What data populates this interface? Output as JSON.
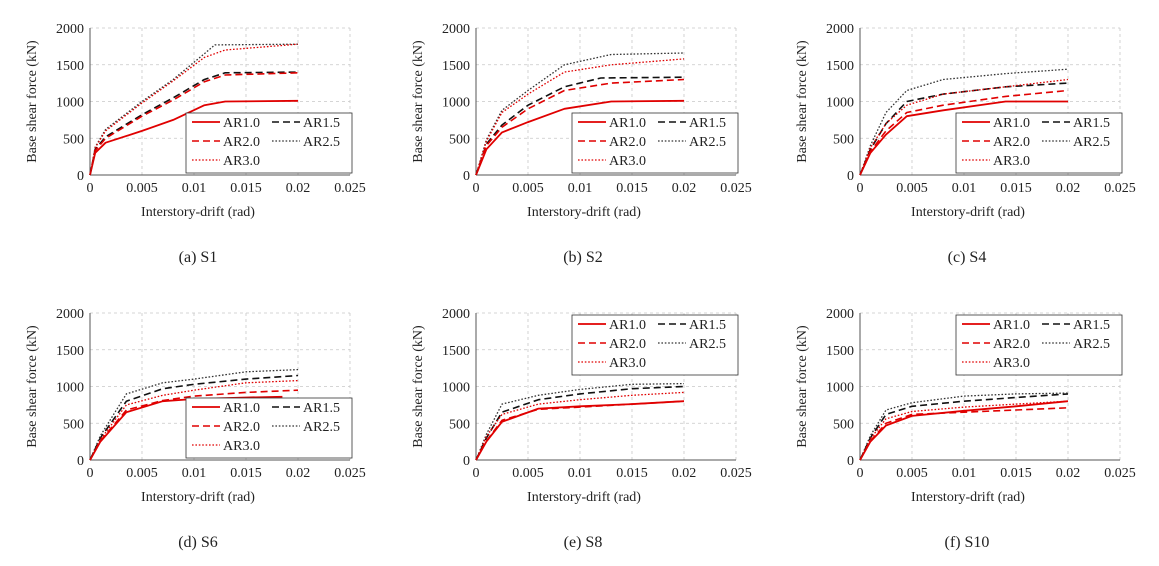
{
  "figure": {
    "colors": {
      "ar10": "#e00000",
      "ar15": "#111111",
      "ar20": "#e00000",
      "ar25": "#333333",
      "ar30": "#e00000"
    }
  },
  "chart_data": [
    {
      "type": "line",
      "caption": "(a) S1",
      "xlabel": "Interstory-drift  (rad)",
      "ylabel": "Base shear force (kN)",
      "xlim": [
        0,
        0.025
      ],
      "ylim": [
        0,
        2000
      ],
      "xticks": [
        "0",
        "0.005",
        "0.01",
        "0.015",
        "0.02",
        "0.025"
      ],
      "yticks": [
        "0",
        "500",
        "1000",
        "1500",
        "2000"
      ],
      "legend_position": "bottom-right",
      "series": [
        {
          "name": "AR1.0",
          "style": "solid",
          "color": "#e00000",
          "x": [
            0,
            0.0005,
            0.0015,
            0.005,
            0.008,
            0.011,
            0.013,
            0.02
          ],
          "y": [
            0,
            300,
            440,
            600,
            750,
            950,
            1000,
            1010
          ]
        },
        {
          "name": "AR1.5",
          "style": "dash",
          "color": "#111111",
          "x": [
            0,
            0.0005,
            0.0015,
            0.005,
            0.008,
            0.011,
            0.013,
            0.02
          ],
          "y": [
            0,
            350,
            520,
            820,
            1050,
            1300,
            1390,
            1400
          ]
        },
        {
          "name": "AR2.0",
          "style": "dash",
          "color": "#e00000",
          "x": [
            0,
            0.0005,
            0.0015,
            0.005,
            0.008,
            0.011,
            0.013,
            0.02
          ],
          "y": [
            0,
            330,
            500,
            800,
            1020,
            1270,
            1360,
            1390
          ]
        },
        {
          "name": "AR2.5",
          "style": "dot",
          "color": "#333333",
          "x": [
            0,
            0.0005,
            0.0015,
            0.005,
            0.008,
            0.011,
            0.012,
            0.02
          ],
          "y": [
            0,
            380,
            620,
            1000,
            1300,
            1650,
            1770,
            1780
          ]
        },
        {
          "name": "AR3.0",
          "style": "dot",
          "color": "#e00000",
          "x": [
            0,
            0.0005,
            0.0015,
            0.005,
            0.008,
            0.011,
            0.013,
            0.02
          ],
          "y": [
            0,
            370,
            600,
            980,
            1280,
            1600,
            1700,
            1780
          ]
        }
      ]
    },
    {
      "type": "line",
      "caption": "(b) S2",
      "xlabel": "Interstory-drift  (rad)",
      "ylabel": "Base shear force (kN)",
      "xlim": [
        0,
        0.025
      ],
      "ylim": [
        0,
        2000
      ],
      "xticks": [
        "0",
        "0.005",
        "0.01",
        "0.015",
        "0.02",
        "0.025"
      ],
      "yticks": [
        "0",
        "500",
        "1000",
        "1500",
        "2000"
      ],
      "legend_position": "bottom-right",
      "series": [
        {
          "name": "AR1.0",
          "style": "solid",
          "color": "#e00000",
          "x": [
            0,
            0.001,
            0.0025,
            0.005,
            0.0085,
            0.013,
            0.02
          ],
          "y": [
            0,
            350,
            580,
            720,
            900,
            1000,
            1010
          ]
        },
        {
          "name": "AR1.5",
          "style": "dash",
          "color": "#111111",
          "x": [
            0,
            0.001,
            0.0025,
            0.005,
            0.0085,
            0.012,
            0.02
          ],
          "y": [
            0,
            420,
            680,
            950,
            1200,
            1320,
            1330
          ]
        },
        {
          "name": "AR2.0",
          "style": "dash",
          "color": "#e00000",
          "x": [
            0,
            0.001,
            0.0025,
            0.005,
            0.0085,
            0.013,
            0.02
          ],
          "y": [
            0,
            400,
            650,
            900,
            1150,
            1250,
            1300
          ]
        },
        {
          "name": "AR2.5",
          "style": "dot",
          "color": "#333333",
          "x": [
            0,
            0.001,
            0.0025,
            0.005,
            0.0085,
            0.013,
            0.02
          ],
          "y": [
            0,
            480,
            880,
            1150,
            1500,
            1640,
            1660
          ]
        },
        {
          "name": "AR3.0",
          "style": "dot",
          "color": "#e00000",
          "x": [
            0,
            0.001,
            0.0025,
            0.005,
            0.0085,
            0.013,
            0.02
          ],
          "y": [
            0,
            460,
            850,
            1100,
            1400,
            1500,
            1580
          ]
        }
      ]
    },
    {
      "type": "line",
      "caption": "(c) S4",
      "xlabel": "Interstory-drift  (rad)",
      "ylabel": "Base shear force (kN)",
      "xlim": [
        0,
        0.025
      ],
      "ylim": [
        0,
        2000
      ],
      "xticks": [
        "0",
        "0.005",
        "0.01",
        "0.015",
        "0.02",
        "0.025"
      ],
      "yticks": [
        "0",
        "500",
        "1000",
        "1500",
        "2000"
      ],
      "legend_position": "bottom-right",
      "series": [
        {
          "name": "AR1.0",
          "style": "solid",
          "color": "#e00000",
          "x": [
            0,
            0.001,
            0.0025,
            0.0045,
            0.008,
            0.014,
            0.02
          ],
          "y": [
            0,
            300,
            550,
            800,
            880,
            1000,
            1000
          ]
        },
        {
          "name": "AR1.5",
          "style": "dash",
          "color": "#111111",
          "x": [
            0,
            0.001,
            0.0025,
            0.0045,
            0.008,
            0.014,
            0.02
          ],
          "y": [
            0,
            350,
            700,
            1000,
            1100,
            1200,
            1250
          ]
        },
        {
          "name": "AR2.0",
          "style": "dash",
          "color": "#e00000",
          "x": [
            0,
            0.001,
            0.0025,
            0.0045,
            0.008,
            0.014,
            0.02
          ],
          "y": [
            0,
            320,
            600,
            850,
            950,
            1070,
            1150
          ]
        },
        {
          "name": "AR2.5",
          "style": "dot",
          "color": "#333333",
          "x": [
            0,
            0.001,
            0.0025,
            0.0045,
            0.008,
            0.014,
            0.02
          ],
          "y": [
            0,
            400,
            850,
            1150,
            1300,
            1380,
            1440
          ]
        },
        {
          "name": "AR3.0",
          "style": "dot",
          "color": "#e00000",
          "x": [
            0,
            0.001,
            0.0025,
            0.0045,
            0.008,
            0.014,
            0.02
          ],
          "y": [
            0,
            370,
            700,
            950,
            1100,
            1200,
            1300
          ]
        }
      ]
    },
    {
      "type": "line",
      "caption": "(d) S6",
      "xlabel": "Interstory-drift  (rad)",
      "ylabel": "Base shear force (kN)",
      "xlim": [
        0,
        0.025
      ],
      "ylim": [
        0,
        2000
      ],
      "xticks": [
        "0",
        "0.005",
        "0.01",
        "0.015",
        "0.02",
        "0.025"
      ],
      "yticks": [
        "0",
        "500",
        "1000",
        "1500",
        "2000"
      ],
      "legend_position": "bottom-right",
      "series": [
        {
          "name": "AR1.0",
          "style": "solid",
          "color": "#e00000",
          "x": [
            0,
            0.001,
            0.0035,
            0.007,
            0.01,
            0.015,
            0.0185
          ],
          "y": [
            0,
            250,
            650,
            800,
            830,
            850,
            860
          ]
        },
        {
          "name": "AR1.5",
          "style": "dash",
          "color": "#111111",
          "x": [
            0,
            0.001,
            0.0035,
            0.007,
            0.01,
            0.015,
            0.02
          ],
          "y": [
            0,
            300,
            800,
            970,
            1030,
            1100,
            1150
          ]
        },
        {
          "name": "AR2.0",
          "style": "dash",
          "color": "#e00000",
          "x": [
            0,
            0.001,
            0.0035,
            0.007,
            0.01,
            0.015,
            0.02
          ],
          "y": [
            0,
            260,
            680,
            810,
            870,
            920,
            950
          ]
        },
        {
          "name": "AR2.5",
          "style": "dot",
          "color": "#333333",
          "x": [
            0,
            0.001,
            0.0035,
            0.007,
            0.01,
            0.015,
            0.02
          ],
          "y": [
            0,
            330,
            900,
            1050,
            1100,
            1200,
            1230
          ]
        },
        {
          "name": "AR3.0",
          "style": "dot",
          "color": "#e00000",
          "x": [
            0,
            0.001,
            0.0035,
            0.007,
            0.01,
            0.015,
            0.02
          ],
          "y": [
            0,
            280,
            750,
            880,
            950,
            1050,
            1080
          ]
        }
      ]
    },
    {
      "type": "line",
      "caption": "(e) S8",
      "xlabel": "Interstory-drift  (rad)",
      "ylabel": "Base shear force (kN)",
      "xlim": [
        0,
        0.025
      ],
      "ylim": [
        0,
        2000
      ],
      "xticks": [
        "0",
        "0.005",
        "0.01",
        "0.015",
        "0.02",
        "0.025"
      ],
      "yticks": [
        "0",
        "500",
        "1000",
        "1500",
        "2000"
      ],
      "legend_position": "top-right",
      "series": [
        {
          "name": "AR1.0",
          "style": "solid",
          "color": "#e00000",
          "x": [
            0,
            0.001,
            0.0025,
            0.006,
            0.01,
            0.015,
            0.02
          ],
          "y": [
            0,
            250,
            520,
            700,
            730,
            760,
            800
          ]
        },
        {
          "name": "AR1.5",
          "style": "dash",
          "color": "#111111",
          "x": [
            0,
            0.001,
            0.0025,
            0.006,
            0.01,
            0.015,
            0.02
          ],
          "y": [
            0,
            300,
            650,
            820,
            900,
            970,
            1000
          ]
        },
        {
          "name": "AR2.0",
          "style": "dash",
          "color": "#e00000",
          "x": [
            0,
            0.001,
            0.0025,
            0.006,
            0.01,
            0.015,
            0.02
          ],
          "y": [
            0,
            260,
            540,
            690,
            720,
            760,
            800
          ]
        },
        {
          "name": "AR2.5",
          "style": "dot",
          "color": "#333333",
          "x": [
            0,
            0.001,
            0.0025,
            0.006,
            0.01,
            0.015,
            0.02
          ],
          "y": [
            0,
            350,
            760,
            880,
            960,
            1030,
            1040
          ]
        },
        {
          "name": "AR3.0",
          "style": "dot",
          "color": "#e00000",
          "x": [
            0,
            0.001,
            0.0025,
            0.006,
            0.01,
            0.015,
            0.02
          ],
          "y": [
            0,
            320,
            620,
            760,
            820,
            880,
            920
          ]
        }
      ]
    },
    {
      "type": "line",
      "caption": "(f) S10",
      "xlabel": "Interstory-drift  (rad)",
      "ylabel": "Base shear force (kN)",
      "xlim": [
        0,
        0.025
      ],
      "ylim": [
        0,
        2000
      ],
      "xticks": [
        "0",
        "0.005",
        "0.01",
        "0.015",
        "0.02",
        "0.025"
      ],
      "yticks": [
        "0",
        "500",
        "1000",
        "1500",
        "2000"
      ],
      "legend_position": "top-right",
      "series": [
        {
          "name": "AR1.0",
          "style": "solid",
          "color": "#e00000",
          "x": [
            0,
            0.001,
            0.0025,
            0.005,
            0.01,
            0.015,
            0.02
          ],
          "y": [
            0,
            250,
            470,
            600,
            670,
            730,
            800
          ]
        },
        {
          "name": "AR1.5",
          "style": "dash",
          "color": "#111111",
          "x": [
            0,
            0.001,
            0.0025,
            0.005,
            0.01,
            0.015,
            0.02
          ],
          "y": [
            0,
            300,
            620,
            730,
            800,
            850,
            900
          ]
        },
        {
          "name": "AR2.0",
          "style": "dash",
          "color": "#e00000",
          "x": [
            0,
            0.001,
            0.0025,
            0.005,
            0.01,
            0.015,
            0.02
          ],
          "y": [
            0,
            260,
            500,
            620,
            650,
            680,
            710
          ]
        },
        {
          "name": "AR2.5",
          "style": "dot",
          "color": "#333333",
          "x": [
            0,
            0.001,
            0.0025,
            0.005,
            0.01,
            0.015,
            0.02
          ],
          "y": [
            0,
            330,
            680,
            780,
            870,
            900,
            910
          ]
        },
        {
          "name": "AR3.0",
          "style": "dot",
          "color": "#e00000",
          "x": [
            0,
            0.001,
            0.0025,
            0.005,
            0.01,
            0.015,
            0.02
          ],
          "y": [
            0,
            290,
            560,
            660,
            720,
            760,
            800
          ]
        }
      ]
    }
  ]
}
